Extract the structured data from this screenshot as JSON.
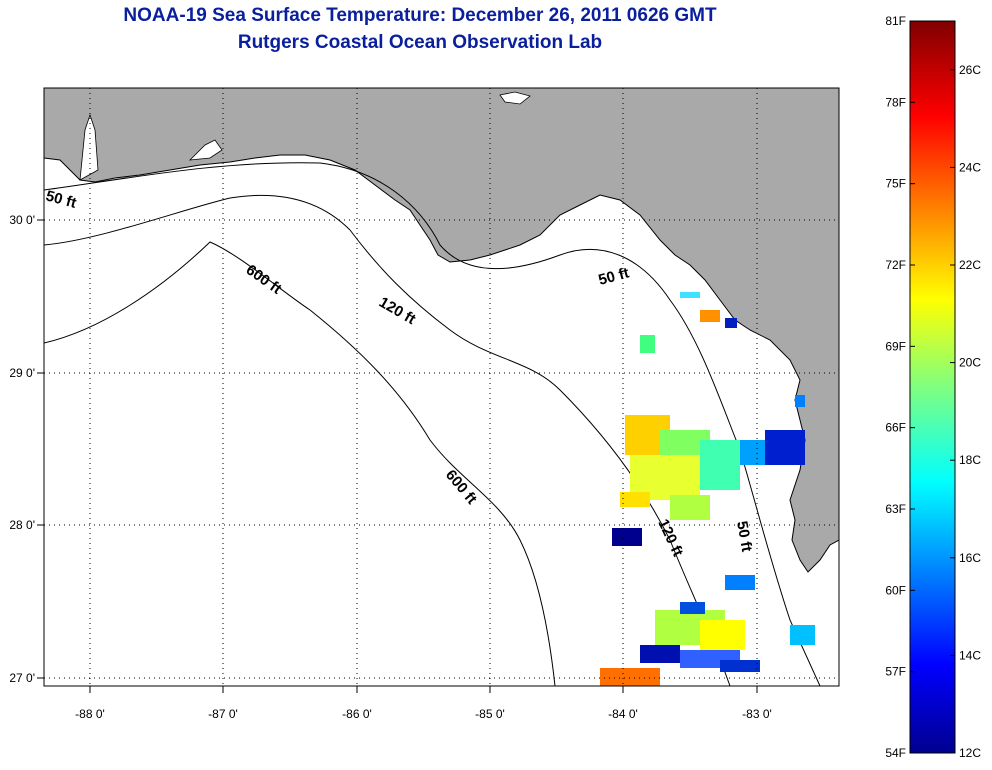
{
  "title": {
    "line1": "NOAA-19 Sea Surface Temperature:  December 26, 2011 0626 GMT",
    "line2": "Rutgers Coastal Ocean Observation Lab"
  },
  "map": {
    "lat_labels": [
      "30 0'",
      "29 0'",
      "28 0'",
      "27 0'"
    ],
    "lon_labels": [
      "-88 0'",
      "-87 0'",
      "-86 0'",
      "-85 0'",
      "-84 0'",
      "-83 0'"
    ],
    "depth_labels": {
      "d50_west": "50 ft",
      "d600_north": "600 ft",
      "d120_north": "120 ft",
      "d50_east": "50 ft",
      "d600_south": "600 ft",
      "d120_south": "120 ft",
      "d50_south": "50 ft"
    },
    "colors": {
      "land": "#a9a9a9",
      "ocean": "#ffffff",
      "grid": "#000000"
    }
  },
  "colorbar": {
    "fahrenheit": [
      "81F",
      "78F",
      "75F",
      "72F",
      "69F",
      "66F",
      "63F",
      "60F",
      "57F",
      "54F"
    ],
    "celsius": [
      "26C",
      "24C",
      "22C",
      "20C",
      "18C",
      "16C",
      "14C",
      "12C"
    ],
    "colormap": "jet",
    "range_f": [
      54,
      81
    ],
    "range_c": [
      12,
      27
    ]
  }
}
